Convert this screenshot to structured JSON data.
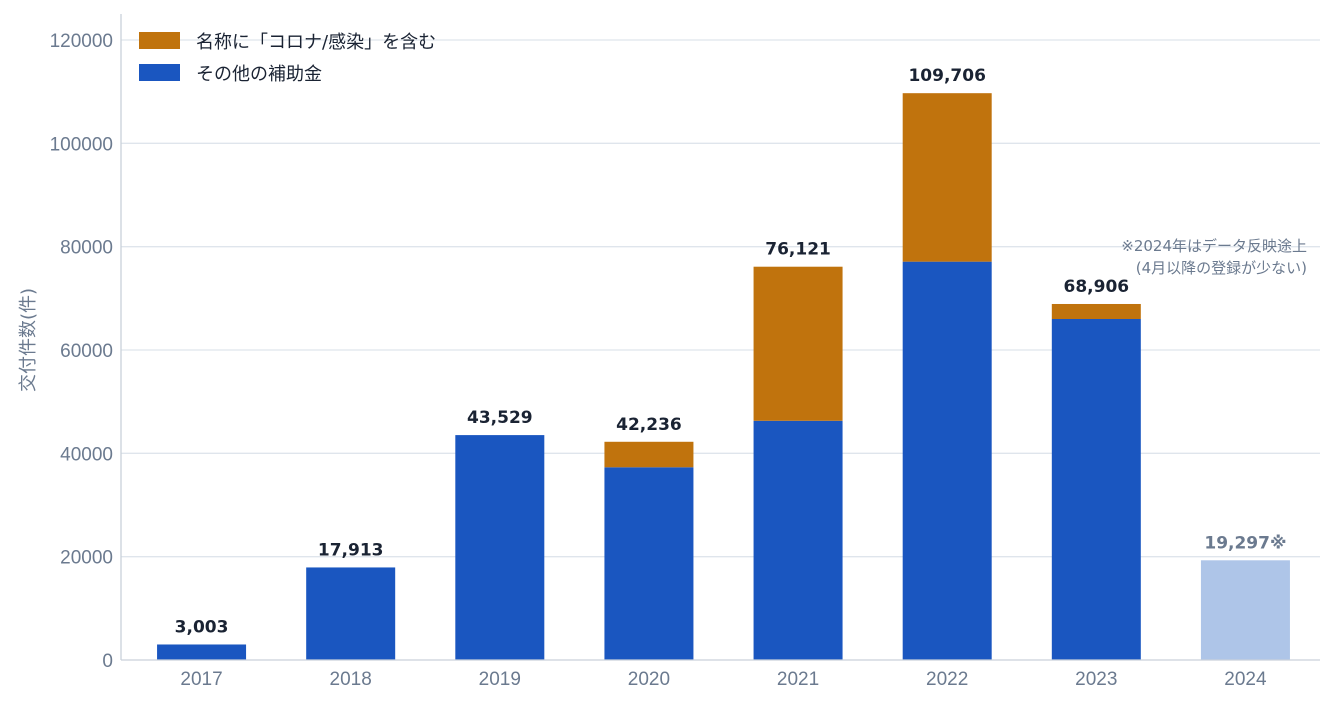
{
  "chart_data": {
    "type": "bar",
    "stacked": true,
    "categories": [
      "2017",
      "2018",
      "2019",
      "2020",
      "2021",
      "2022",
      "2023",
      "2024"
    ],
    "series": [
      {
        "name": "その他の補助金",
        "color": "#1a56c0",
        "values": [
          3003,
          17913,
          43529,
          37300,
          46300,
          77100,
          66000,
          19297
        ]
      },
      {
        "name": "名称に「コロナ/感染」を含む",
        "color": "#c0730d",
        "values": [
          0,
          0,
          0,
          4936,
          29821,
          32606,
          2906,
          0
        ]
      }
    ],
    "totals": [
      "3,003",
      "17,913",
      "43,529",
      "42,236",
      "76,121",
      "109,706",
      "68,906",
      "19,297※"
    ],
    "highlight": {
      "category": "2024",
      "color": "#aec5e8",
      "label_color": "#6b7a8f"
    },
    "ylabel": "交付件数(件)",
    "xlabel": "",
    "ylim": [
      0,
      120000
    ],
    "yticks": [
      0,
      20000,
      40000,
      60000,
      80000,
      100000,
      120000
    ],
    "grid": true,
    "legend_position": "top-left",
    "note": [
      "※2024年はデータ反映途上",
      "(4月以降の登録が少ない)"
    ]
  }
}
